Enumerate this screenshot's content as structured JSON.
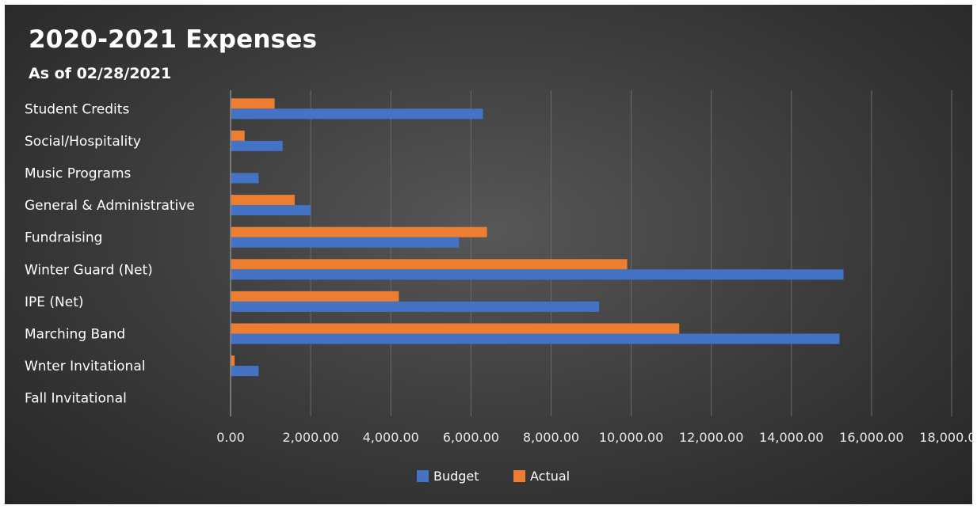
{
  "chart_data": {
    "type": "bar",
    "orientation": "horizontal",
    "title": "2020-2021 Expenses",
    "subtitle": "As of 02/28/2021",
    "categories": [
      "Student Credits",
      "Social/Hospitality",
      "Music Programs",
      "General & Administrative",
      "Fundraising",
      "Winter Guard (Net)",
      "IPE (Net)",
      "Marching Band",
      "Wnter Invitational",
      "Fall Invitational"
    ],
    "series": [
      {
        "name": "Budget",
        "color": "#4472C4",
        "values": [
          6300,
          1300,
          700,
          2000,
          5700,
          15300,
          9200,
          15200,
          700,
          0
        ]
      },
      {
        "name": "Actual",
        "color": "#ED7D31",
        "values": [
          1100,
          350,
          0,
          1600,
          6400,
          9900,
          4200,
          11200,
          100,
          0
        ]
      }
    ],
    "xlim": [
      0,
      18000
    ],
    "xticks": [
      0,
      2000,
      4000,
      6000,
      8000,
      10000,
      12000,
      14000,
      16000,
      18000
    ],
    "xtick_labels": [
      "0.00",
      "2,000.00",
      "4,000.00",
      "6,000.00",
      "8,000.00",
      "10,000.00",
      "12,000.00",
      "14,000.00",
      "16,000.00",
      "18,000.00"
    ],
    "grid": true,
    "legend": "bottom"
  }
}
